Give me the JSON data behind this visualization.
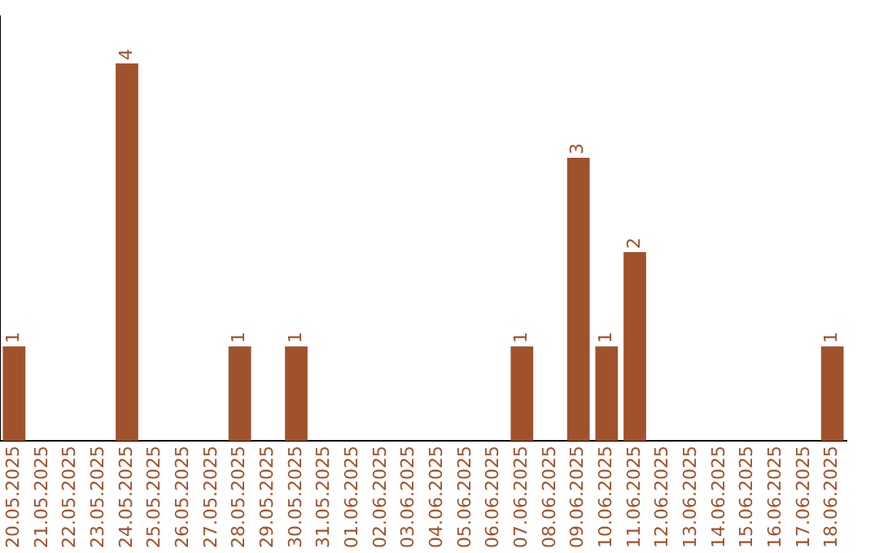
{
  "chart_data": {
    "type": "bar",
    "categories": [
      "20.05.2025",
      "21.05.2025",
      "22.05.2025",
      "23.05.2025",
      "24.05.2025",
      "25.05.2025",
      "26.05.2025",
      "27.05.2025",
      "28.05.2025",
      "29.05.2025",
      "30.05.2025",
      "31.05.2025",
      "01.06.2025",
      "02.06.2025",
      "03.06.2025",
      "04.06.2025",
      "05.06.2025",
      "06.06.2025",
      "07.06.2025",
      "08.06.2025",
      "09.06.2025",
      "10.06.2025",
      "11.06.2025",
      "12.06.2025",
      "13.06.2025",
      "14.06.2025",
      "15.06.2025",
      "16.06.2025",
      "17.06.2025",
      "18.06.2025"
    ],
    "values": [
      1,
      0,
      0,
      0,
      4,
      0,
      0,
      0,
      1,
      0,
      1,
      0,
      0,
      0,
      0,
      0,
      0,
      0,
      1,
      0,
      3,
      1,
      2,
      0,
      0,
      0,
      0,
      0,
      0,
      1
    ],
    "value_labels": [
      "1",
      null,
      null,
      null,
      "4",
      null,
      null,
      null,
      "1",
      null,
      "1",
      null,
      null,
      null,
      null,
      null,
      null,
      null,
      "1",
      null,
      "3",
      "1",
      "2",
      null,
      null,
      null,
      null,
      null,
      null,
      "1"
    ],
    "color": "#a0522d",
    "grid": false,
    "legend": false
  }
}
